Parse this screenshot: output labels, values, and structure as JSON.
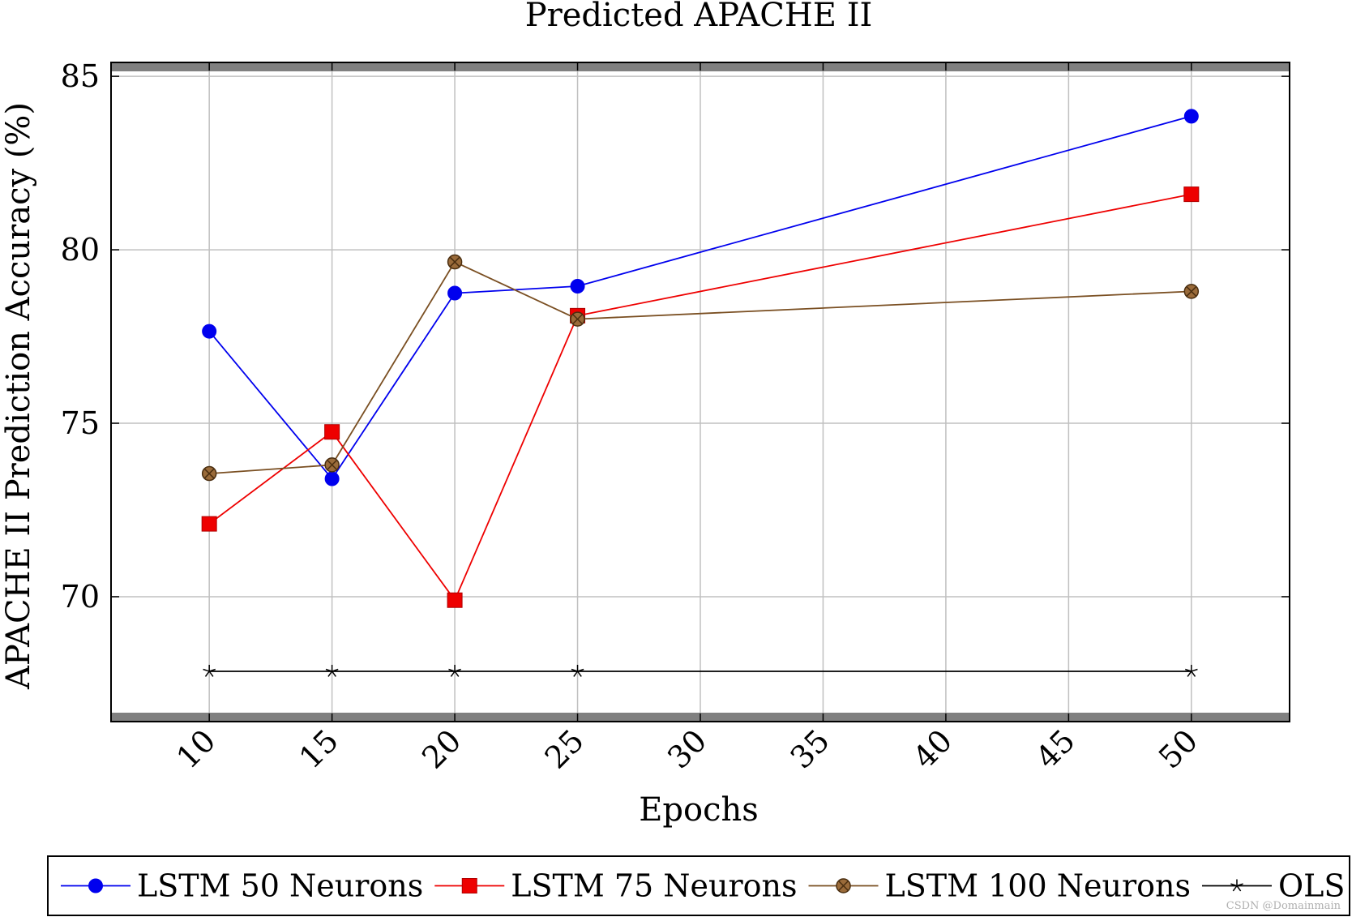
{
  "chart_data": {
    "type": "line",
    "title": "Predicted APACHE II",
    "xlabel": "Epochs",
    "ylabel": "APACHE II Prediction Accuracy (%)",
    "x": [
      10,
      15,
      20,
      25,
      50
    ],
    "xlim": [
      6,
      54
    ],
    "ylim": [
      66.4,
      85.4
    ],
    "xticks": [
      10,
      15,
      20,
      25,
      30,
      35,
      40,
      45,
      50
    ],
    "yticks": [
      70,
      75,
      80,
      85
    ],
    "grid": true,
    "legend_position": "bottom",
    "series": [
      {
        "name": "LSTM 50 Neurons",
        "values": [
          77.65,
          73.4,
          78.75,
          78.95,
          83.85
        ],
        "color": "#0000ee",
        "marker": "circle"
      },
      {
        "name": "LSTM 75 Neurons",
        "values": [
          72.1,
          74.75,
          69.9,
          78.1,
          81.6
        ],
        "color": "#ee0000",
        "marker": "square"
      },
      {
        "name": "LSTM 100 Neurons",
        "values": [
          73.55,
          73.8,
          79.65,
          78.0,
          78.8
        ],
        "color": "#7a4f22",
        "marker": "circle-x"
      },
      {
        "name": "OLS",
        "values": [
          67.85,
          67.85,
          67.85,
          67.85,
          67.85
        ],
        "color": "#000000",
        "marker": "star"
      }
    ]
  },
  "watermark": "CSDN @Domainmain"
}
